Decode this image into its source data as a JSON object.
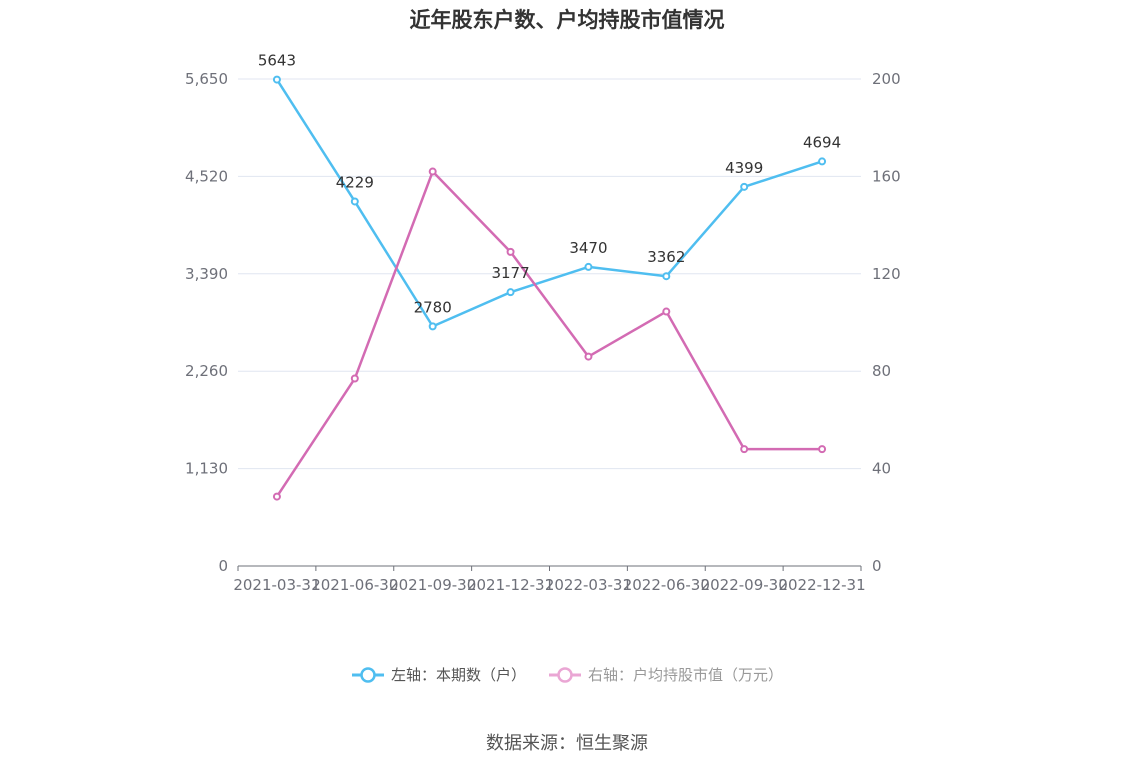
{
  "title": "近年股东户数、户均持股市值情况",
  "source": "数据来源：恒生聚源",
  "chart_data": {
    "type": "line",
    "title": "近年股东户数、户均持股市值情况",
    "categories": [
      "2021-03-31",
      "2021-06-30",
      "2021-09-30",
      "2021-12-31",
      "2022-03-31",
      "2022-06-30",
      "2022-09-30",
      "2022-12-31"
    ],
    "left_axis": {
      "min": 0,
      "max": 5650,
      "ticks": [
        "0",
        "1,130",
        "2,260",
        "3,390",
        "4,520",
        "5,650"
      ],
      "tick_values": [
        0,
        1130,
        2260,
        3390,
        4520,
        5650
      ]
    },
    "right_axis": {
      "min": 0,
      "max": 200,
      "ticks": [
        "0",
        "40",
        "80",
        "120",
        "160",
        "200"
      ],
      "tick_values": [
        0,
        40,
        80,
        120,
        160,
        200
      ]
    },
    "series": [
      {
        "name": "左轴：本期数（户）",
        "axis": "left",
        "color": "#4fbef0",
        "values": [
          5643,
          4229,
          2780,
          3177,
          3470,
          3362,
          4399,
          4694
        ],
        "labels": [
          "5643",
          "4229",
          "2780",
          "3177",
          "3470",
          "3362",
          "4399",
          "4694"
        ]
      },
      {
        "name": "右轴：户均持股市值（万元）",
        "axis": "right",
        "color": "#d36bb3",
        "values": [
          28.5,
          77,
          162,
          129,
          86,
          104.5,
          48,
          48
        ]
      }
    ],
    "grid": true,
    "legend_position": "bottom"
  }
}
